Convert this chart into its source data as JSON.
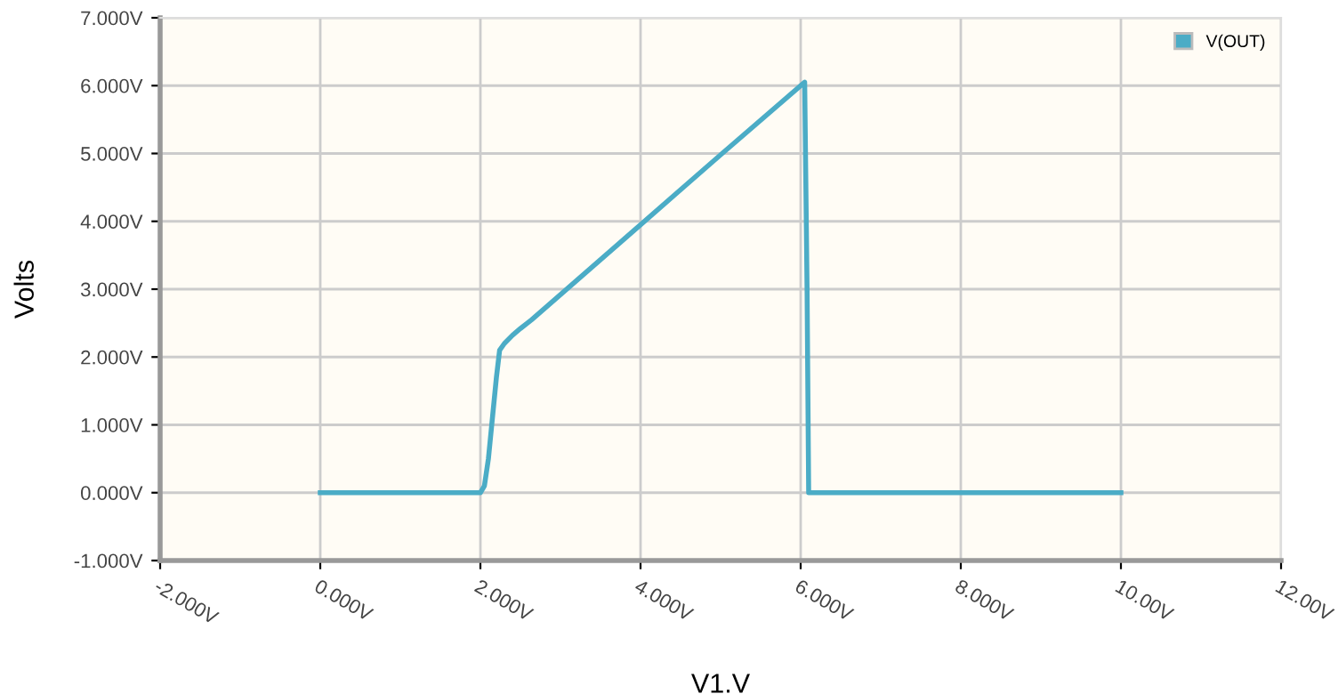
{
  "chart_data": {
    "type": "line",
    "xlabel": "V1.V",
    "ylabel": "Volts",
    "series": [
      {
        "name": "V(OUT)",
        "color": "#4bacc6",
        "x": [
          0,
          2.0,
          2.05,
          2.1,
          2.15,
          2.2,
          2.24,
          2.3,
          2.4,
          2.5,
          2.64,
          3.0,
          4.0,
          5.0,
          6.05,
          6.08,
          6.1,
          10.0
        ],
        "values": [
          0,
          0,
          0.1,
          0.5,
          1.1,
          1.7,
          2.1,
          2.2,
          2.32,
          2.42,
          2.55,
          2.92,
          3.95,
          4.98,
          6.05,
          3.0,
          0,
          0
        ]
      }
    ],
    "xlim": [
      -2,
      12
    ],
    "ylim": [
      -1,
      7
    ],
    "xticks": [
      {
        "value": -2,
        "label": "-2.000V"
      },
      {
        "value": 0,
        "label": "0.000V"
      },
      {
        "value": 2,
        "label": "2.000V"
      },
      {
        "value": 4,
        "label": "4.000V"
      },
      {
        "value": 6,
        "label": "6.000V"
      },
      {
        "value": 8,
        "label": "8.000V"
      },
      {
        "value": 10,
        "label": "10.00V"
      },
      {
        "value": 12,
        "label": "12.00V"
      }
    ],
    "yticks": [
      {
        "value": -1,
        "label": "-1.000V"
      },
      {
        "value": 0,
        "label": "0.000V"
      },
      {
        "value": 1,
        "label": "1.000V"
      },
      {
        "value": 2,
        "label": "2.000V"
      },
      {
        "value": 3,
        "label": "3.000V"
      },
      {
        "value": 4,
        "label": "4.000V"
      },
      {
        "value": 5,
        "label": "5.000V"
      },
      {
        "value": 6,
        "label": "6.000V"
      },
      {
        "value": 7,
        "label": "7.000V"
      }
    ],
    "grid": true,
    "legend": "top right",
    "marker": "none",
    "line_style": "solid"
  }
}
